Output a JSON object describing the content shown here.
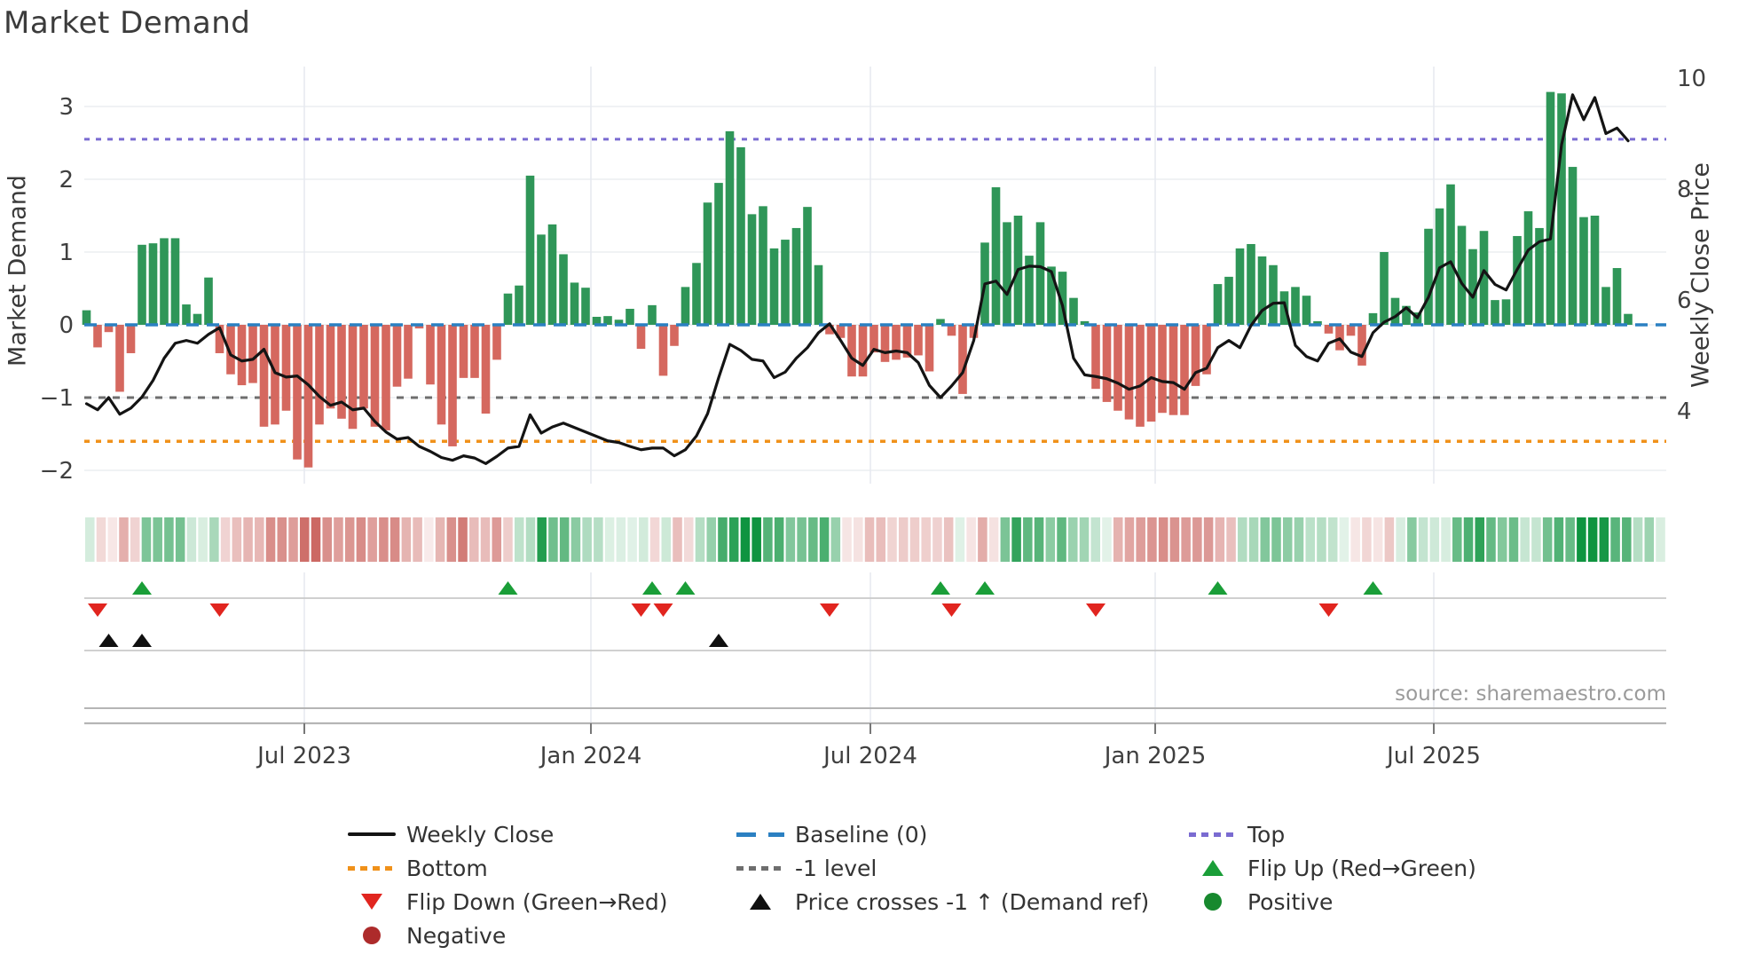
{
  "title": "Market Demand",
  "source_note": "source: sharemaestro.com",
  "axes": {
    "left_label": "Market Demand",
    "right_label": "Weekly Close Price",
    "left_tick_values": [
      3,
      2,
      1,
      0,
      -1,
      -2
    ],
    "left_tick_labels": [
      "3",
      "2",
      "1",
      "0",
      "−1",
      "−2"
    ],
    "right_tick_values": [
      10,
      8,
      6,
      4
    ],
    "right_tick_labels": [
      "10",
      "8",
      "6",
      "4"
    ]
  },
  "legend": {
    "weekly_close": "Weekly Close",
    "baseline": "Baseline (0)",
    "top": "Top",
    "bottom": "Bottom",
    "minus1": "-1 level",
    "flip_up": "Flip Up (Red→Green)",
    "flip_down": "Flip Down (Green→Red)",
    "price_cross": "Price crosses -1 ↑ (Demand ref)",
    "positive": "Positive",
    "negative": "Negative"
  },
  "colors": {
    "bar_positive": "#2f9658",
    "bar_negative": "#d5685f",
    "price_line": "#141414",
    "baseline": "#2b80c2",
    "top_line": "#7a6bd1",
    "bottom_line": "#f0911a",
    "minus1_line": "#6e6e6e",
    "flip_up": "#1a9e38",
    "flip_down": "#e1251f",
    "price_cross": "#101010",
    "positive_dot": "#17892e",
    "negative_dot": "#ad2b2b",
    "heat_positive": "#0f9440",
    "heat_negative": "#c5544e",
    "grid": "#ebedf0",
    "vgrid": "#e7eaf0",
    "panel_line": "#c9c9c9",
    "spine": "#b5b5b5",
    "tick_text": "#3f3f3f"
  },
  "chart_data": {
    "type": "bar+line+heatmap",
    "title": "Market Demand",
    "x_unit": "weekly",
    "n_weeks": 140,
    "x_tick_labels": [
      "Jul 2023",
      "Jan 2024",
      "Jul 2024",
      "Jan 2025",
      "Jul 2025"
    ],
    "x_tick_weeks": [
      19.64,
      45.48,
      70.68,
      96.36,
      121.48
    ],
    "ylim_left": [
      -2.2,
      3.55
    ],
    "ylim_right": [
      2.7,
      10.2
    ],
    "grid": true,
    "legend_position": "bottom",
    "ref_lines": {
      "top": 2.55,
      "baseline": 0,
      "minus_1": -1,
      "bottom": -1.6
    },
    "series": [
      {
        "name": "Market Demand",
        "type": "bar",
        "axis": "left",
        "values": [
          0.2,
          -0.31,
          -0.1,
          -0.92,
          -0.39,
          1.1,
          1.12,
          1.19,
          1.19,
          0.28,
          0.15,
          0.65,
          -0.39,
          -0.68,
          -0.83,
          -0.8,
          -1.4,
          -1.37,
          -1.18,
          -1.85,
          -1.96,
          -1.37,
          -1.15,
          -1.29,
          -1.43,
          -1.15,
          -1.4,
          -1.45,
          -0.85,
          -0.74,
          -0.05,
          -0.82,
          -1.37,
          -1.67,
          -0.73,
          -0.73,
          -1.22,
          -0.48,
          0.43,
          0.54,
          2.05,
          1.24,
          1.38,
          0.97,
          0.58,
          0.51,
          0.11,
          0.12,
          0.07,
          0.22,
          -0.33,
          0.27,
          -0.7,
          -0.29,
          0.52,
          0.85,
          1.68,
          1.95,
          2.66,
          2.44,
          1.52,
          1.63,
          1.05,
          1.17,
          1.33,
          1.62,
          0.82,
          -0.13,
          -0.18,
          -0.71,
          -0.71,
          -0.38,
          -0.51,
          -0.48,
          -0.45,
          -0.42,
          -0.64,
          0.08,
          -0.15,
          -0.95,
          -0.18,
          1.13,
          1.89,
          1.41,
          1.5,
          0.95,
          1.41,
          0.8,
          0.73,
          0.37,
          0.05,
          -0.88,
          -1.06,
          -1.18,
          -1.3,
          -1.4,
          -1.33,
          -1.21,
          -1.24,
          -1.24,
          -0.84,
          -0.68,
          0.56,
          0.66,
          1.05,
          1.11,
          0.94,
          0.82,
          0.46,
          0.52,
          0.4,
          0.05,
          -0.12,
          -0.35,
          -0.15,
          -0.56,
          0.16,
          1.0,
          0.37,
          0.26,
          0.17,
          1.32,
          1.6,
          1.93,
          1.36,
          1.04,
          1.29,
          0.34,
          0.35,
          1.22,
          1.56,
          1.33,
          3.2,
          3.18,
          2.17,
          1.48,
          1.5,
          0.52,
          0.78,
          0.15
        ]
      },
      {
        "name": "Weekly Close",
        "type": "line",
        "axis": "right",
        "values": [
          4.13,
          4.02,
          4.24,
          3.94,
          4.05,
          4.25,
          4.55,
          4.95,
          5.22,
          5.27,
          5.22,
          5.38,
          5.5,
          5.01,
          4.9,
          4.93,
          5.11,
          4.69,
          4.61,
          4.63,
          4.47,
          4.26,
          4.1,
          4.16,
          4.02,
          4.05,
          3.81,
          3.62,
          3.49,
          3.52,
          3.36,
          3.27,
          3.16,
          3.11,
          3.19,
          3.15,
          3.05,
          3.18,
          3.33,
          3.36,
          3.93,
          3.6,
          3.71,
          3.78,
          3.7,
          3.62,
          3.54,
          3.46,
          3.43,
          3.36,
          3.3,
          3.33,
          3.33,
          3.19,
          3.3,
          3.55,
          3.95,
          4.6,
          5.2,
          5.09,
          4.93,
          4.9,
          4.6,
          4.7,
          4.95,
          5.14,
          5.41,
          5.57,
          5.27,
          4.95,
          4.82,
          5.11,
          5.05,
          5.08,
          5.05,
          4.87,
          4.46,
          4.24,
          4.45,
          4.69,
          5.27,
          6.29,
          6.34,
          6.1,
          6.55,
          6.61,
          6.6,
          6.51,
          5.9,
          4.95,
          4.65,
          4.62,
          4.58,
          4.5,
          4.39,
          4.45,
          4.6,
          4.53,
          4.51,
          4.39,
          4.69,
          4.77,
          5.14,
          5.27,
          5.14,
          5.54,
          5.81,
          5.94,
          5.95,
          5.18,
          4.98,
          4.9,
          5.22,
          5.3,
          5.06,
          4.98,
          5.41,
          5.6,
          5.7,
          5.86,
          5.68,
          6.05,
          6.58,
          6.69,
          6.3,
          6.05,
          6.53,
          6.28,
          6.18,
          6.55,
          6.9,
          7.05,
          7.1,
          8.8,
          9.7,
          9.25,
          9.65,
          9.0,
          9.1,
          8.87
        ]
      },
      {
        "name": "Demand heatmap strip",
        "type": "heatmap",
        "values_ref": "series.0.values"
      }
    ],
    "markers": {
      "flip_up_weeks": [
        5,
        38,
        51,
        54,
        77,
        81,
        102,
        116
      ],
      "flip_down_weeks": [
        1,
        12,
        50,
        52,
        67,
        78,
        91,
        112
      ],
      "price_cross_minus1_weeks": [
        2,
        5,
        57
      ]
    }
  }
}
